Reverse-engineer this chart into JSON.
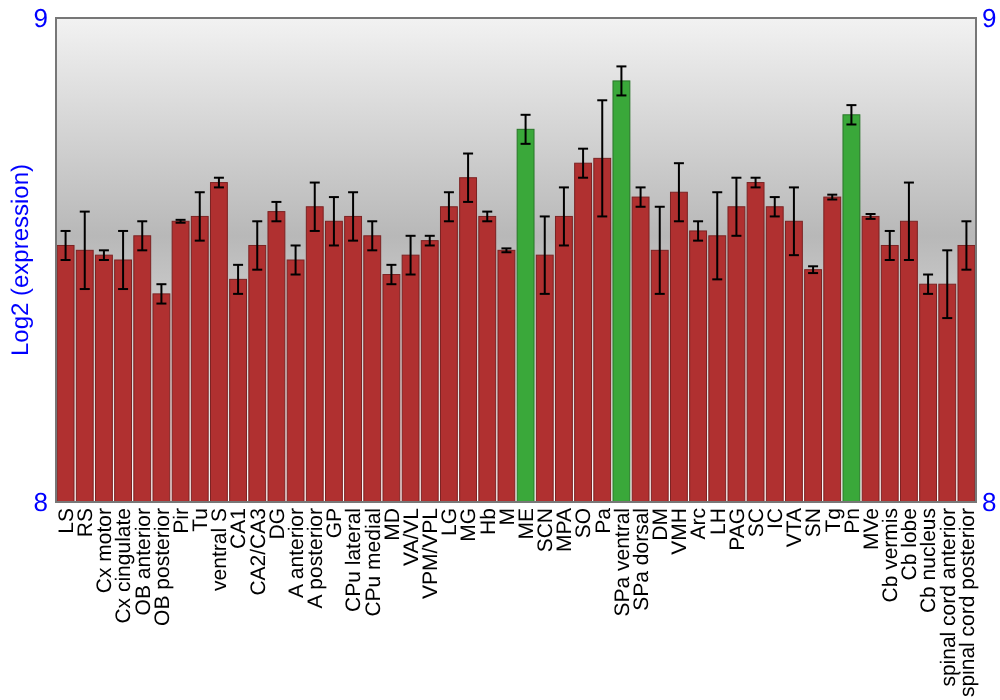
{
  "chart_data": {
    "type": "bar",
    "ylabel": "Log2 (expression)",
    "categories": [
      "LS",
      "RS",
      "Cx motor",
      "Cx cingulate",
      "OB anterior",
      "OB posterior",
      "Pir",
      "Tu",
      "ventral S",
      "CA1",
      "CA2/CA3",
      "DG",
      "A anterior",
      "A posterior",
      "GP",
      "CPu lateral",
      "CPu medial",
      "MD",
      "VA/VL",
      "VPM/VPL",
      "LG",
      "MG",
      "Hb",
      "M",
      "ME",
      "SCN",
      "MPA",
      "SO",
      "Pa",
      "SPa ventral",
      "SPa dorsal",
      "DM",
      "VMH",
      "Arc",
      "LH",
      "PAG",
      "SC",
      "IC",
      "VTA",
      "SN",
      "Tg",
      "Pn",
      "MVe",
      "Cb vermis",
      "Cb lobe",
      "Cb nucleus",
      "spinal cord anterior",
      "spinal cord posterior"
    ],
    "values": [
      8.53,
      8.52,
      8.51,
      8.5,
      8.55,
      8.43,
      8.58,
      8.59,
      8.66,
      8.46,
      8.53,
      8.6,
      8.5,
      8.61,
      8.58,
      8.59,
      8.55,
      8.47,
      8.51,
      8.54,
      8.61,
      8.67,
      8.59,
      8.52,
      8.77,
      8.51,
      8.59,
      8.7,
      8.71,
      8.87,
      8.63,
      8.52,
      8.64,
      8.56,
      8.55,
      8.61,
      8.66,
      8.61,
      8.58,
      8.48,
      8.63,
      8.8,
      8.59,
      8.53,
      8.58,
      8.45,
      8.45,
      8.53
    ],
    "errors": [
      0.03,
      0.08,
      0.01,
      0.06,
      0.03,
      0.02,
      0.003,
      0.05,
      0.01,
      0.03,
      0.05,
      0.02,
      0.03,
      0.05,
      0.05,
      0.05,
      0.03,
      0.02,
      0.04,
      0.01,
      0.03,
      0.05,
      0.01,
      0.004,
      0.03,
      0.08,
      0.06,
      0.03,
      0.12,
      0.03,
      0.02,
      0.09,
      0.06,
      0.02,
      0.09,
      0.06,
      0.01,
      0.02,
      0.07,
      0.007,
      0.005,
      0.02,
      0.005,
      0.03,
      0.08,
      0.02,
      0.07,
      0.05
    ],
    "colors": [
      "#b03030",
      "#b03030",
      "#b03030",
      "#b03030",
      "#b03030",
      "#b03030",
      "#b03030",
      "#b03030",
      "#b03030",
      "#b03030",
      "#b03030",
      "#b03030",
      "#b03030",
      "#b03030",
      "#b03030",
      "#b03030",
      "#b03030",
      "#b03030",
      "#b03030",
      "#b03030",
      "#b03030",
      "#b03030",
      "#b03030",
      "#b03030",
      "#3aa83a",
      "#b03030",
      "#b03030",
      "#b03030",
      "#b03030",
      "#3aa83a",
      "#b03030",
      "#b03030",
      "#b03030",
      "#b03030",
      "#b03030",
      "#b03030",
      "#b03030",
      "#b03030",
      "#b03030",
      "#b03030",
      "#b03030",
      "#3aa83a",
      "#b03030",
      "#b03030",
      "#b03030",
      "#b03030",
      "#b03030",
      "#b03030"
    ],
    "ylim": [
      8,
      9
    ],
    "yticks": [
      8,
      9
    ],
    "y2lim": [
      8,
      9
    ],
    "y2ticks": [
      8,
      9
    ]
  }
}
